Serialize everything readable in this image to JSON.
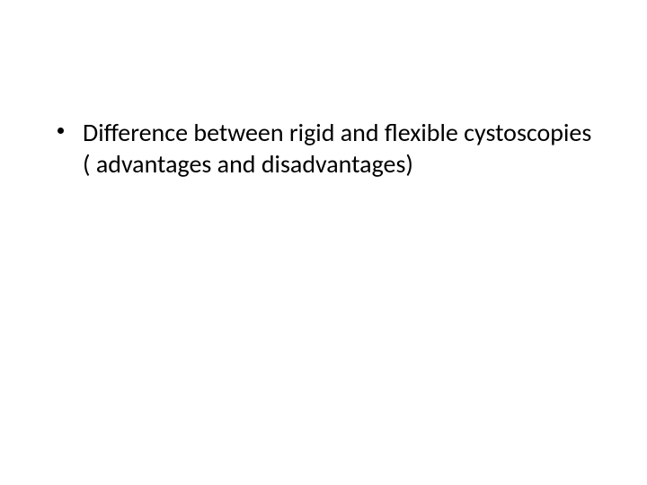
{
  "slide": {
    "background_color": "#ffffff",
    "text_color": "#000000",
    "font_family": "Calibri",
    "font_size_pt": 28,
    "bullets": [
      {
        "text": "Difference between rigid and flexible cystoscopies ( advantages and disadvantages)"
      }
    ]
  }
}
